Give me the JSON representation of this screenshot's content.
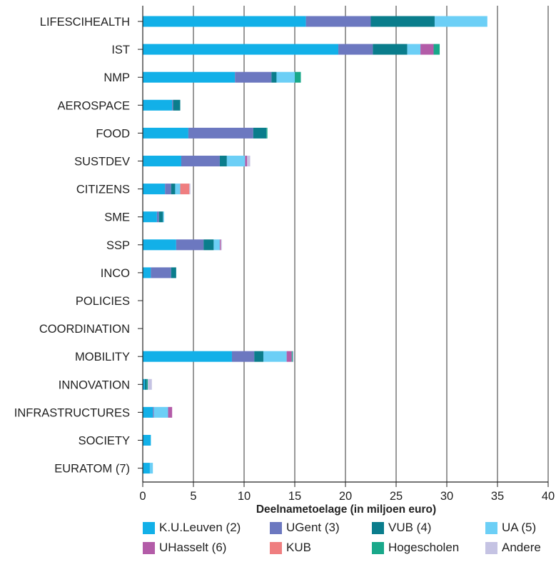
{
  "chart_data": {
    "type": "bar",
    "orientation": "horizontal",
    "stacked": true,
    "xlabel": "Deelnametoelage (in miljoen euro)",
    "xlim": [
      0,
      40
    ],
    "xticks": [
      0,
      5,
      10,
      15,
      20,
      25,
      30,
      35,
      40
    ],
    "grid": "vertical",
    "legend_position": "bottom",
    "categories": [
      "LIFESCIHEALTH",
      "IST",
      "NMP",
      "AEROSPACE",
      "FOOD",
      "SUSTDEV",
      "CITIZENS",
      "SME",
      "SSP",
      "INCO",
      "POLICIES",
      "COORDINATION",
      "MOBILITY",
      "INNOVATION",
      "INFRASTRUCTURES",
      "SOCIETY",
      "EURATOM (7)"
    ],
    "series": [
      {
        "name": "K.U.Leuven (2)",
        "color": "#12b0e8",
        "values": [
          16.1,
          19.3,
          9.1,
          2.9,
          4.5,
          3.8,
          2.2,
          1.4,
          3.3,
          0.8,
          0,
          0,
          8.8,
          0.2,
          1.0,
          0.8,
          0.7
        ]
      },
      {
        "name": "UGent (3)",
        "color": "#6c78c0",
        "values": [
          6.4,
          3.4,
          3.6,
          0.1,
          6.4,
          3.8,
          0.6,
          0.2,
          2.7,
          2.0,
          0,
          0,
          2.2,
          0,
          0.1,
          0,
          0
        ]
      },
      {
        "name": "VUB (4)",
        "color": "#0a7d8c",
        "values": [
          6.3,
          3.4,
          0.5,
          0.7,
          1.3,
          0.7,
          0.4,
          0.4,
          1.0,
          0.5,
          0,
          0,
          0.9,
          0.2,
          0,
          0,
          0
        ]
      },
      {
        "name": "UA (5)",
        "color": "#6ccff6",
        "values": [
          5.2,
          1.3,
          1.8,
          0,
          0,
          1.8,
          0.5,
          0.1,
          0.6,
          0,
          0,
          0,
          2.3,
          0,
          1.4,
          0,
          0.3
        ]
      },
      {
        "name": "UHasselt (6)",
        "color": "#b35ca8",
        "values": [
          0,
          1.3,
          0,
          0,
          0,
          0.2,
          0,
          0,
          0.1,
          0,
          0,
          0,
          0.5,
          0,
          0.4,
          0,
          0
        ]
      },
      {
        "name": "KUB",
        "color": "#ef7e80",
        "values": [
          0,
          0,
          0,
          0,
          0,
          0,
          0.9,
          0,
          0,
          0,
          0,
          0,
          0,
          0,
          0,
          0,
          0
        ]
      },
      {
        "name": "Hogescholen",
        "color": "#19a88a",
        "values": [
          0,
          0.6,
          0.6,
          0,
          0.1,
          0,
          0,
          0,
          0,
          0,
          0,
          0,
          0.1,
          0.1,
          0,
          0,
          0
        ]
      },
      {
        "name": "Andere",
        "color": "#c5c3e3",
        "values": [
          0,
          0,
          0,
          0,
          0,
          0.3,
          0.1,
          0,
          0.1,
          0,
          0,
          0,
          0.1,
          0.4,
          0,
          0,
          0
        ]
      }
    ]
  }
}
